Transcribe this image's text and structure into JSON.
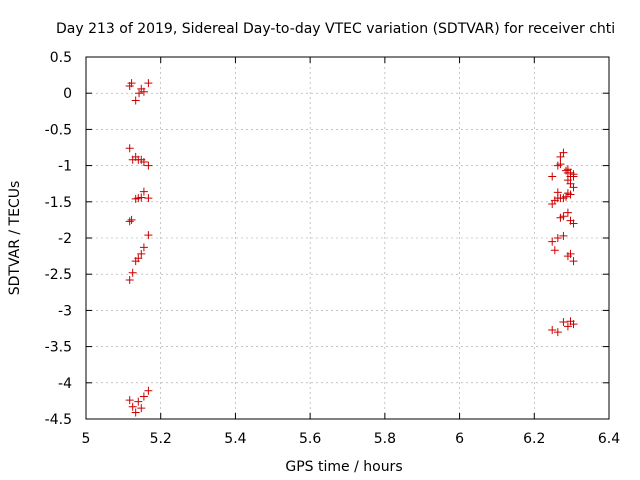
{
  "chart_data": {
    "type": "scatter",
    "title": "Day 213 of 2019, Sidereal Day-to-day VTEC variation (SDTVAR) for receiver chti",
    "xlabel": "GPS time / hours",
    "ylabel": "SDTVAR / TECUs",
    "xlim": [
      5,
      6.4
    ],
    "ylim": [
      -4.5,
      0.5
    ],
    "x_ticks": [
      5,
      5.2,
      5.4,
      5.6,
      5.8,
      6,
      6.2,
      6.4
    ],
    "x_tick_labels": [
      "5",
      "5.2",
      "5.4",
      "5.6",
      "5.8",
      "6",
      "6.2",
      "6.4"
    ],
    "y_ticks": [
      0.5,
      0,
      -0.5,
      -1,
      -1.5,
      -2,
      -2.5,
      -3,
      -3.5,
      -4,
      -4.5
    ],
    "y_tick_labels": [
      "0.5",
      "0",
      "-0.5",
      "-1",
      "-1.5",
      "-2",
      "-2.5",
      "-3",
      "-3.5",
      "-4",
      "-4.5"
    ],
    "grid": true,
    "legend": "none",
    "marker_color": "#cc0000",
    "series": [
      {
        "x": [
          5.117,
          5.122,
          5.142,
          5.148,
          5.155,
          5.167,
          5.133,
          5.117,
          5.125,
          5.133,
          5.14,
          5.148,
          5.155,
          5.167,
          5.117,
          5.122,
          5.133,
          5.14,
          5.148,
          5.155,
          5.167,
          5.117,
          5.125,
          5.133,
          5.14,
          5.148,
          5.155,
          5.167,
          5.117,
          5.125,
          5.133,
          5.14,
          5.148,
          5.155,
          5.167
        ],
        "y": [
          0.1,
          0.14,
          0.0,
          0.06,
          0.02,
          0.14,
          -0.1,
          -0.76,
          -0.92,
          -0.88,
          -0.92,
          -0.92,
          -0.95,
          -1.0,
          -1.77,
          -1.75,
          -1.46,
          -1.45,
          -1.44,
          -1.36,
          -1.45,
          -2.58,
          -2.48,
          -2.32,
          -2.28,
          -2.22,
          -2.13,
          -1.96,
          -4.24,
          -4.33,
          -4.41,
          -4.26,
          -4.35,
          -4.19,
          -4.11
        ]
      },
      {
        "x": [
          6.263,
          6.27,
          6.27,
          6.278,
          6.285,
          6.29,
          6.297,
          6.305,
          6.29,
          6.297,
          6.305,
          6.248,
          6.263,
          6.27,
          6.278,
          6.285,
          6.29,
          6.297,
          6.305,
          6.29,
          6.297,
          6.248,
          6.255,
          6.263,
          6.27,
          6.278,
          6.29,
          6.297,
          6.305,
          6.248,
          6.255,
          6.263,
          6.278,
          6.29,
          6.297,
          6.305,
          6.248,
          6.263,
          6.278,
          6.29,
          6.297,
          6.305
        ],
        "y": [
          -1.0,
          -0.98,
          -0.88,
          -0.82,
          -1.07,
          -1.1,
          -1.1,
          -1.12,
          -1.2,
          -1.25,
          -1.15,
          -1.15,
          -1.37,
          -1.45,
          -1.45,
          -1.43,
          -1.38,
          -1.4,
          -1.3,
          -1.05,
          -1.15,
          -1.53,
          -1.48,
          -1.45,
          -1.72,
          -1.7,
          -1.65,
          -1.76,
          -1.8,
          -2.05,
          -2.17,
          -2.0,
          -1.97,
          -2.25,
          -2.22,
          -2.32,
          -3.27,
          -3.3,
          -3.16,
          -3.22,
          -3.15,
          -3.19
        ]
      }
    ]
  }
}
